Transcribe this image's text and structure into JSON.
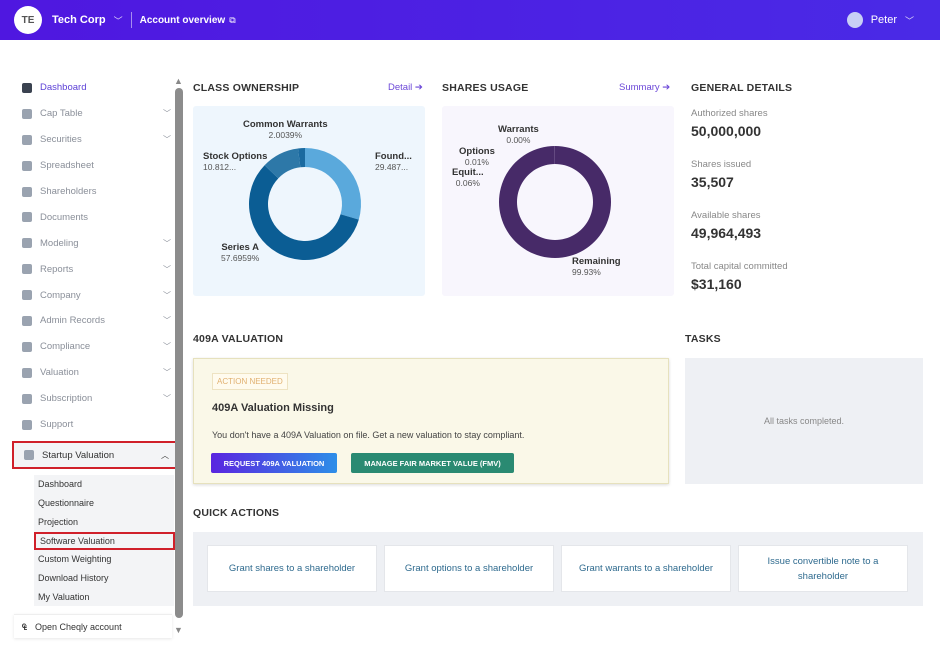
{
  "header": {
    "avatar": "TE",
    "company": "Tech Corp",
    "account_overview": "Account overview",
    "user": "Peter"
  },
  "sidebar": {
    "items": [
      {
        "label": "Dashboard",
        "icon": "dashboard-icon",
        "chevron": false,
        "active": true
      },
      {
        "label": "Cap Table",
        "icon": "pie-icon",
        "chevron": true
      },
      {
        "label": "Securities",
        "icon": "clipboard-icon",
        "chevron": true
      },
      {
        "label": "Spreadsheet",
        "icon": "spreadsheet-icon",
        "chevron": false
      },
      {
        "label": "Shareholders",
        "icon": "user-icon",
        "chevron": false
      },
      {
        "label": "Documents",
        "icon": "folder-icon",
        "chevron": false
      },
      {
        "label": "Modeling",
        "icon": "bulb-icon",
        "chevron": true
      },
      {
        "label": "Reports",
        "icon": "report-icon",
        "chevron": true
      },
      {
        "label": "Company",
        "icon": "building-icon",
        "chevron": true
      },
      {
        "label": "Admin Records",
        "icon": "records-icon",
        "chevron": true
      },
      {
        "label": "Compliance",
        "icon": "shield-icon",
        "chevron": true
      },
      {
        "label": "Valuation",
        "icon": "chart-icon",
        "chevron": true
      },
      {
        "label": "Subscription",
        "icon": "dollar-icon",
        "chevron": true
      },
      {
        "label": "Support",
        "icon": "support-icon",
        "chevron": false
      }
    ],
    "startup_valuation": "Startup Valuation",
    "sub_items": [
      "Dashboard",
      "Questionnaire",
      "Projection",
      "Software Valuation",
      "Custom Weighting",
      "Download History",
      "My Valuation"
    ],
    "open_account": "Open Cheqly account"
  },
  "class_ownership": {
    "title": "CLASS OWNERSHIP",
    "link": "Detail",
    "chart_data": {
      "type": "pie",
      "slices": [
        {
          "name": "Found...",
          "label": "29.487...",
          "value": 29.487,
          "color": "#5aa9dc"
        },
        {
          "name": "Series A",
          "label": "57.6959%",
          "value": 57.6959,
          "color": "#0b5d94"
        },
        {
          "name": "Stock Options",
          "label": "10.812...",
          "value": 10.812,
          "color": "#2d78a8"
        },
        {
          "name": "Common Warrants",
          "label": "2.0039%",
          "value": 2.0039,
          "color": "#1a6aa0"
        }
      ]
    }
  },
  "shares_usage": {
    "title": "SHARES USAGE",
    "link": "Summary",
    "chart_data": {
      "type": "pie",
      "slices": [
        {
          "name": "Remaining",
          "label": "99.93%",
          "value": 99.93,
          "color": "#472a68"
        },
        {
          "name": "Equit...",
          "label": "0.06%",
          "value": 0.06,
          "color": "#6a4a8a"
        },
        {
          "name": "Options",
          "label": "0.01%",
          "value": 0.01,
          "color": "#6a4a8a"
        },
        {
          "name": "Warrants",
          "label": "0.00%",
          "value": 0.0,
          "color": "#6a4a8a"
        }
      ]
    }
  },
  "general": {
    "title": "GENERAL DETAILS",
    "items": [
      {
        "k": "Authorized shares",
        "v": "50,000,000"
      },
      {
        "k": "Shares issued",
        "v": "35,507"
      },
      {
        "k": "Available shares",
        "v": "49,964,493"
      },
      {
        "k": "Total capital committed",
        "v": "$31,160"
      }
    ]
  },
  "valuation": {
    "title": "409A VALUATION",
    "badge": "ACTION NEEDED",
    "heading": "409A Valuation Missing",
    "text": "You don't have a 409A Valuation on file. Get a new valuation to stay compliant.",
    "btn1": "REQUEST 409A VALUATION",
    "btn2": "MANAGE FAIR MARKET VALUE (FMV)"
  },
  "tasks": {
    "title": "TASKS",
    "empty": "All tasks completed."
  },
  "quick_actions": {
    "title": "QUICK ACTIONS",
    "items": [
      "Grant shares to a shareholder",
      "Grant options to a shareholder",
      "Grant warrants to a shareholder",
      "Issue convertible note to a shareholder"
    ]
  }
}
